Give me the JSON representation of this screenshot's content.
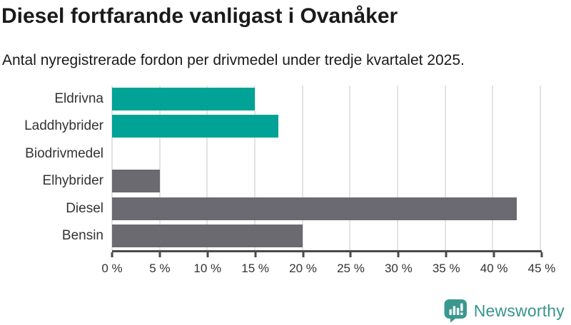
{
  "header": {
    "title": "Diesel fortfarande vanligast i Ovanåker",
    "subtitle": "Antal nyregistrerade fordon per drivmedel under tredje kvartalet 2025."
  },
  "chart_data": {
    "type": "bar",
    "orientation": "horizontal",
    "title": "Diesel fortfarande vanligast i Ovanåker",
    "subtitle": "Antal nyregistrerade fordon per drivmedel under tredje kvartalet 2025.",
    "categories": [
      "Eldrivna",
      "Laddhybrider",
      "Biodrivmedel",
      "Elhybrider",
      "Diesel",
      "Bensin"
    ],
    "values": [
      15,
      17.5,
      0,
      5,
      42.5,
      20
    ],
    "unit": "%",
    "xlabel": "",
    "ylabel": "",
    "xlim": [
      0,
      45
    ],
    "x_tick_step": 5,
    "x_tick_labels": [
      "0 %",
      "5 %",
      "10 %",
      "15 %",
      "20 %",
      "25 %",
      "30 %",
      "35 %",
      "40 %",
      "45 %"
    ],
    "bar_colors": [
      "#00a396",
      "#00a396",
      "#6a6a70",
      "#6a6a70",
      "#6a6a70",
      "#6a6a70"
    ],
    "grid": true,
    "legend": false
  },
  "footer": {
    "brand": "Newsworthy",
    "brand_color": "#37948b",
    "logo_icon": "speech-bubble-bar-chart-exclamation"
  },
  "colors": {
    "teal": "#00a396",
    "gray": "#6a6a70",
    "gridline": "#e3e3e3",
    "axis": "#4a4a4a",
    "title_text": "#1a1a1a",
    "tick_text": "#333333",
    "background": "#ffffff"
  }
}
